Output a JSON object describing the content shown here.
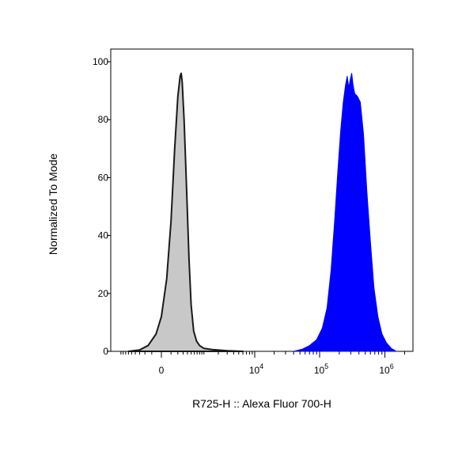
{
  "chart_data": {
    "type": "area",
    "title": "",
    "xlabel": "R725-H :: Alexa Fluor 700-H",
    "ylabel": "Normalized To Mode",
    "ylim": [
      0,
      100
    ],
    "yticks": [
      0,
      20,
      40,
      60,
      80,
      100
    ],
    "x_scale": "biexponential",
    "xticks": [
      {
        "value": 0,
        "base": "0",
        "exp": ""
      },
      {
        "value": 10000,
        "base": "10",
        "exp": "4"
      },
      {
        "value": 100000,
        "base": "10",
        "exp": "5"
      },
      {
        "value": 1000000,
        "base": "10",
        "exp": "6"
      }
    ],
    "series": [
      {
        "color": "#c8c8c8",
        "stroke": "#1a1a1a",
        "points": [
          [
            -600,
            0
          ],
          [
            -300,
            0.5
          ],
          [
            -150,
            2
          ],
          [
            -50,
            6
          ],
          [
            0,
            12
          ],
          [
            50,
            25
          ],
          [
            100,
            45
          ],
          [
            150,
            70
          ],
          [
            200,
            88
          ],
          [
            240,
            95
          ],
          [
            260,
            96
          ],
          [
            280,
            93
          ],
          [
            320,
            80
          ],
          [
            380,
            55
          ],
          [
            440,
            32
          ],
          [
            500,
            16
          ],
          [
            580,
            7
          ],
          [
            680,
            3.5
          ],
          [
            800,
            2
          ],
          [
            1000,
            1
          ],
          [
            1500,
            0.6
          ],
          [
            3000,
            0.2
          ],
          [
            6000,
            0
          ]
        ]
      },
      {
        "color": "#0000ff",
        "stroke": "#0000ff",
        "points": [
          [
            40000,
            0
          ],
          [
            55000,
            0.8
          ],
          [
            70000,
            2
          ],
          [
            90000,
            4
          ],
          [
            110000,
            8
          ],
          [
            130000,
            15
          ],
          [
            150000,
            28
          ],
          [
            170000,
            45
          ],
          [
            190000,
            62
          ],
          [
            210000,
            76
          ],
          [
            230000,
            86
          ],
          [
            250000,
            92
          ],
          [
            265000,
            95
          ],
          [
            280000,
            91
          ],
          [
            295000,
            94
          ],
          [
            310000,
            96
          ],
          [
            325000,
            92
          ],
          [
            345000,
            89
          ],
          [
            380000,
            88
          ],
          [
            420000,
            86
          ],
          [
            470000,
            75
          ],
          [
            530000,
            55
          ],
          [
            600000,
            38
          ],
          [
            680000,
            22
          ],
          [
            780000,
            12
          ],
          [
            900000,
            6
          ],
          [
            1050000,
            3
          ],
          [
            1250000,
            1
          ],
          [
            1500000,
            0
          ]
        ]
      }
    ]
  }
}
